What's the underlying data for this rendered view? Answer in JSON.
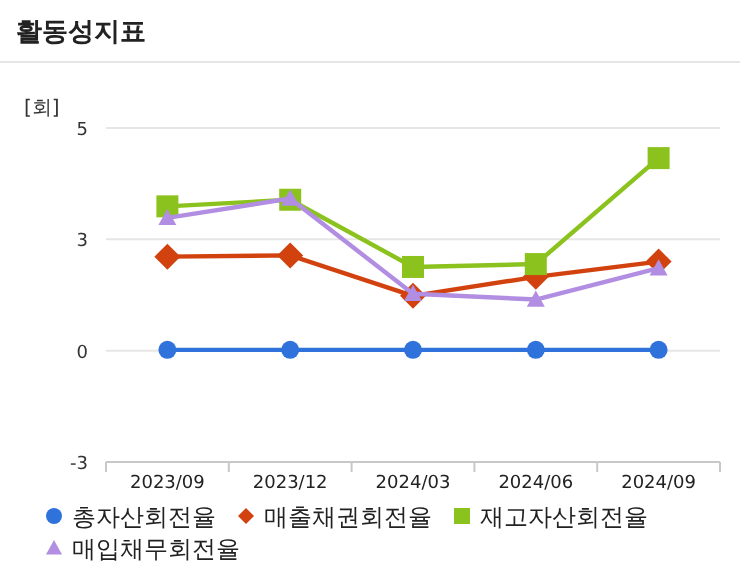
{
  "chart_data": {
    "type": "line",
    "title": "활동성지표",
    "ylabel": "[회]",
    "categories": [
      "2023/09",
      "2023/12",
      "2024/03",
      "2024/06",
      "2024/09"
    ],
    "ylim": [
      -2.7,
      5.4
    ],
    "yticks": [
      {
        "value": -2.7,
        "label": "-3"
      },
      0,
      {
        "value": 2.7,
        "label": "3"
      },
      {
        "value": 5.4,
        "label": "5"
      }
    ],
    "grid": "y",
    "legend": "bottom",
    "series": [
      {
        "name": "총자산회전율",
        "color": "#2f72dc",
        "marker": "circle",
        "values": [
          0.02,
          0.02,
          0.02,
          0.02,
          0.02
        ]
      },
      {
        "name": "매출채권회전율",
        "color": "#d2420f",
        "marker": "diamond",
        "values": [
          2.28,
          2.31,
          1.33,
          1.79,
          2.16
        ]
      },
      {
        "name": "재고자산회전율",
        "color": "#8cc21e",
        "marker": "square",
        "values": [
          3.5,
          3.66,
          2.03,
          2.1,
          4.67
        ]
      },
      {
        "name": "매입채무회전율",
        "color": "#b28ee2",
        "marker": "triangle",
        "values": [
          3.22,
          3.69,
          1.38,
          1.24,
          2.0
        ]
      }
    ]
  }
}
